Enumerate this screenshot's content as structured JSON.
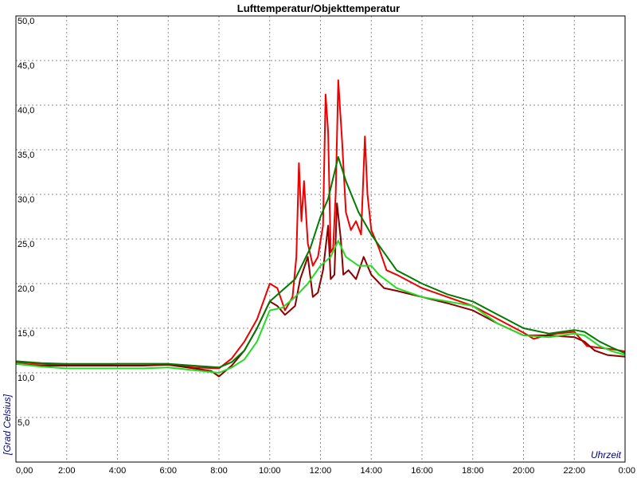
{
  "chart_data": {
    "type": "line",
    "title": "Lufttemperatur/Objekttemperatur",
    "xlabel": "Uhrzeit",
    "ylabel": "[Grad Celsius]",
    "xlim": [
      0,
      24
    ],
    "ylim": [
      0,
      50
    ],
    "x_ticks": [
      {
        "value": 0,
        "label": "0,00"
      },
      {
        "value": 2,
        "label": "2:00"
      },
      {
        "value": 4,
        "label": "4:00"
      },
      {
        "value": 6,
        "label": "6:00"
      },
      {
        "value": 8,
        "label": "8:00"
      },
      {
        "value": 10,
        "label": "10:00"
      },
      {
        "value": 12,
        "label": "12:00"
      },
      {
        "value": 14,
        "label": "14:00"
      },
      {
        "value": 16,
        "label": "16:00"
      },
      {
        "value": 18,
        "label": "18:00"
      },
      {
        "value": 20,
        "label": "20:00"
      },
      {
        "value": 22,
        "label": "22:00"
      },
      {
        "value": 24,
        "label": "0:00"
      }
    ],
    "y_ticks": [
      {
        "value": 5,
        "label": "5,0"
      },
      {
        "value": 10,
        "label": "10,0"
      },
      {
        "value": 15,
        "label": "15,0"
      },
      {
        "value": 20,
        "label": "20,0"
      },
      {
        "value": 25,
        "label": "25,0"
      },
      {
        "value": 30,
        "label": "30,0"
      },
      {
        "value": 35,
        "label": "35,0"
      },
      {
        "value": 40,
        "label": "40,0"
      },
      {
        "value": 45,
        "label": "45,0"
      },
      {
        "value": 50,
        "label": "50,0"
      }
    ],
    "grid": true,
    "series": [
      {
        "color": "#ee0000",
        "points": [
          [
            0,
            11.2
          ],
          [
            1,
            11.0
          ],
          [
            2,
            10.9
          ],
          [
            3,
            10.9
          ],
          [
            4,
            11.0
          ],
          [
            5,
            11.0
          ],
          [
            6,
            11.0
          ],
          [
            7,
            10.6
          ],
          [
            8,
            10.5
          ],
          [
            8.5,
            11.6
          ],
          [
            9,
            13.5
          ],
          [
            9.5,
            16.0
          ],
          [
            10,
            20.0
          ],
          [
            10.3,
            19.5
          ],
          [
            10.6,
            17.0
          ],
          [
            10.9,
            18.5
          ],
          [
            11.05,
            23.0
          ],
          [
            11.15,
            33.5
          ],
          [
            11.25,
            27.0
          ],
          [
            11.35,
            31.5
          ],
          [
            11.5,
            24.5
          ],
          [
            11.7,
            22.0
          ],
          [
            11.9,
            23.0
          ],
          [
            12.1,
            26.5
          ],
          [
            12.2,
            41.2
          ],
          [
            12.3,
            37.0
          ],
          [
            12.4,
            23.5
          ],
          [
            12.5,
            24.0
          ],
          [
            12.6,
            30.0
          ],
          [
            12.7,
            42.8
          ],
          [
            12.85,
            36.0
          ],
          [
            13.0,
            28.0
          ],
          [
            13.2,
            26.0
          ],
          [
            13.4,
            27.0
          ],
          [
            13.6,
            25.5
          ],
          [
            13.75,
            36.5
          ],
          [
            13.85,
            30.0
          ],
          [
            14.0,
            26.0
          ],
          [
            14.3,
            24.0
          ],
          [
            14.6,
            21.5
          ],
          [
            15,
            21.0
          ],
          [
            16,
            19.5
          ],
          [
            17,
            18.5
          ],
          [
            18,
            17.5
          ],
          [
            19,
            16.0
          ],
          [
            20,
            14.5
          ],
          [
            20.4,
            13.8
          ],
          [
            21,
            14.3
          ],
          [
            22,
            14.6
          ],
          [
            22.5,
            13.0
          ],
          [
            23,
            12.8
          ],
          [
            23.6,
            12.6
          ],
          [
            24,
            12.4
          ]
        ]
      },
      {
        "color": "#8b0000",
        "points": [
          [
            0,
            11.0
          ],
          [
            1,
            10.8
          ],
          [
            2,
            10.8
          ],
          [
            3,
            10.8
          ],
          [
            4,
            10.8
          ],
          [
            5,
            10.8
          ],
          [
            6,
            10.9
          ],
          [
            7,
            10.5
          ],
          [
            7.7,
            10.2
          ],
          [
            8,
            9.6
          ],
          [
            8.5,
            10.8
          ],
          [
            9,
            12.5
          ],
          [
            9.5,
            15.0
          ],
          [
            10,
            18.0
          ],
          [
            10.3,
            17.5
          ],
          [
            10.6,
            16.5
          ],
          [
            11,
            17.5
          ],
          [
            11.2,
            20.5
          ],
          [
            11.5,
            23.0
          ],
          [
            11.7,
            18.5
          ],
          [
            11.9,
            19.0
          ],
          [
            12.1,
            21.5
          ],
          [
            12.3,
            26.5
          ],
          [
            12.4,
            20.5
          ],
          [
            12.55,
            21.0
          ],
          [
            12.65,
            29.0
          ],
          [
            12.8,
            25.0
          ],
          [
            12.9,
            21.0
          ],
          [
            13.1,
            21.5
          ],
          [
            13.4,
            20.5
          ],
          [
            13.7,
            23.0
          ],
          [
            14.0,
            21.0
          ],
          [
            14.5,
            19.5
          ],
          [
            15,
            19.2
          ],
          [
            16,
            18.5
          ],
          [
            17,
            17.8
          ],
          [
            18,
            17.0
          ],
          [
            19,
            15.5
          ],
          [
            20,
            14.2
          ],
          [
            21,
            14.2
          ],
          [
            22,
            14.0
          ],
          [
            22.4,
            13.5
          ],
          [
            22.8,
            12.5
          ],
          [
            23.3,
            12.0
          ],
          [
            24,
            11.8
          ]
        ]
      },
      {
        "color": "#007a00",
        "points": [
          [
            0,
            11.3
          ],
          [
            1,
            11.1
          ],
          [
            2,
            11.0
          ],
          [
            3,
            11.0
          ],
          [
            4,
            11.0
          ],
          [
            5,
            11.0
          ],
          [
            6,
            11.0
          ],
          [
            7,
            10.8
          ],
          [
            8,
            10.6
          ],
          [
            8.5,
            11.2
          ],
          [
            9,
            12.5
          ],
          [
            9.5,
            15.0
          ],
          [
            10,
            18.0
          ],
          [
            11,
            20.5
          ],
          [
            11.6,
            24.0
          ],
          [
            12.0,
            27.5
          ],
          [
            12.3,
            29.5
          ],
          [
            12.7,
            34.2
          ],
          [
            13.0,
            31.5
          ],
          [
            13.5,
            28.0
          ],
          [
            14,
            25.5
          ],
          [
            14.5,
            23.5
          ],
          [
            15,
            21.5
          ],
          [
            16,
            20.0
          ],
          [
            17,
            18.8
          ],
          [
            18,
            18.0
          ],
          [
            19,
            16.5
          ],
          [
            20,
            15.0
          ],
          [
            21,
            14.4
          ],
          [
            22,
            14.8
          ],
          [
            22.4,
            14.6
          ],
          [
            23,
            13.5
          ],
          [
            23.5,
            12.8
          ],
          [
            24,
            12.2
          ]
        ]
      },
      {
        "color": "#22dd22",
        "points": [
          [
            0,
            11.0
          ],
          [
            1,
            10.7
          ],
          [
            2,
            10.5
          ],
          [
            3,
            10.5
          ],
          [
            4,
            10.5
          ],
          [
            5,
            10.5
          ],
          [
            6,
            10.6
          ],
          [
            7,
            10.3
          ],
          [
            8,
            10.0
          ],
          [
            8.5,
            10.6
          ],
          [
            9,
            11.5
          ],
          [
            9.5,
            13.5
          ],
          [
            10,
            17.0
          ],
          [
            10.5,
            17.3
          ],
          [
            11,
            18.5
          ],
          [
            11.5,
            20.0
          ],
          [
            12.0,
            22.0
          ],
          [
            12.4,
            23.0
          ],
          [
            12.7,
            24.8
          ],
          [
            13.0,
            23.0
          ],
          [
            13.5,
            22.0
          ],
          [
            14,
            22.0
          ],
          [
            14.3,
            21.0
          ],
          [
            15,
            19.5
          ],
          [
            16,
            18.5
          ],
          [
            17,
            18.0
          ],
          [
            18,
            17.5
          ],
          [
            19,
            15.5
          ],
          [
            20,
            14.2
          ],
          [
            21,
            14.0
          ],
          [
            22,
            14.4
          ],
          [
            22.4,
            14.2
          ],
          [
            23,
            13.0
          ],
          [
            23.5,
            12.4
          ],
          [
            24,
            12.0
          ]
        ]
      }
    ]
  }
}
